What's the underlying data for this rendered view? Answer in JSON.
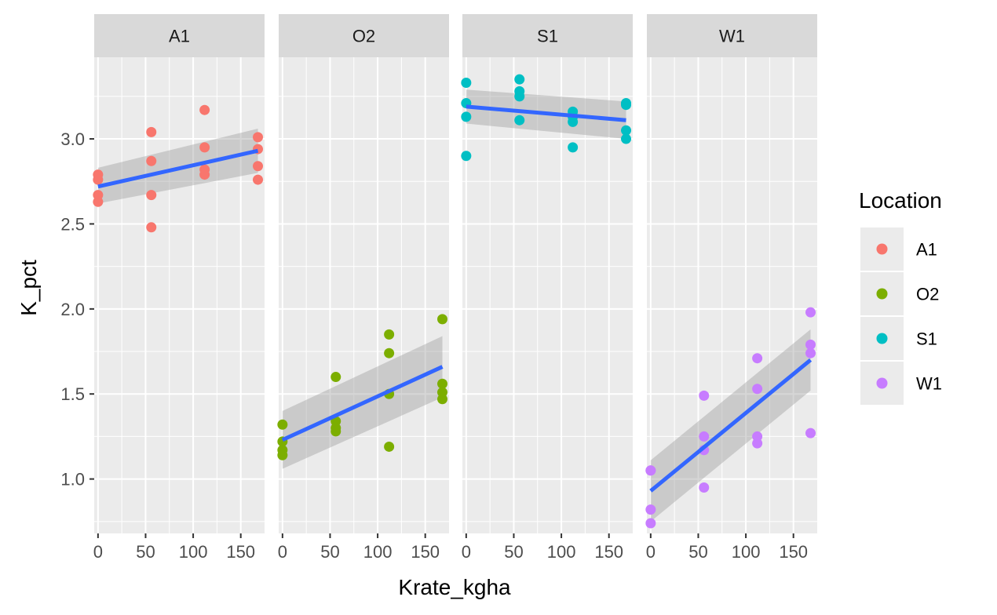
{
  "chart_data": {
    "type": "scatter",
    "facet_variable": "Location",
    "xlabel": "Krate_kgha",
    "ylabel": "K_pct",
    "xlim": [
      -4,
      175
    ],
    "ylim": [
      0.68,
      3.48
    ],
    "x_ticks": [
      0,
      50,
      100,
      150
    ],
    "x_tick_labels": [
      "0",
      "50",
      "100",
      "150"
    ],
    "y_ticks": [
      1.0,
      1.5,
      2.0,
      2.5,
      3.0
    ],
    "y_tick_labels": [
      "1.0",
      "1.5",
      "2.0",
      "2.5",
      "3.0"
    ],
    "grid": true,
    "smooth": "linear fit with grey confidence band",
    "legend": {
      "title": "Location",
      "placement": "right",
      "items": [
        {
          "label": "A1",
          "color": "#F8766D"
        },
        {
          "label": "O2",
          "color": "#7CAE00"
        },
        {
          "label": "S1",
          "color": "#00BFC4"
        },
        {
          "label": "W1",
          "color": "#C77CFF"
        }
      ]
    },
    "line_color": "#3366FF",
    "band_color": "#999999",
    "series": [
      {
        "name": "A1",
        "color": "#F8766D",
        "points": [
          {
            "x": 0,
            "y": 2.79
          },
          {
            "x": 0,
            "y": 2.76
          },
          {
            "x": 0,
            "y": 2.67
          },
          {
            "x": 0,
            "y": 2.63
          },
          {
            "x": 56,
            "y": 3.04
          },
          {
            "x": 56,
            "y": 2.87
          },
          {
            "x": 56,
            "y": 2.67
          },
          {
            "x": 56,
            "y": 2.48
          },
          {
            "x": 112,
            "y": 3.17
          },
          {
            "x": 112,
            "y": 2.95
          },
          {
            "x": 112,
            "y": 2.82
          },
          {
            "x": 112,
            "y": 2.79
          },
          {
            "x": 168,
            "y": 3.01
          },
          {
            "x": 168,
            "y": 2.94
          },
          {
            "x": 168,
            "y": 2.84
          },
          {
            "x": 168,
            "y": 2.76
          }
        ],
        "fit": {
          "x": [
            0,
            168
          ],
          "y": [
            2.72,
            2.93
          ],
          "lower": [
            2.62,
            2.8
          ],
          "upper": [
            2.83,
            3.06
          ]
        }
      },
      {
        "name": "O2",
        "color": "#7CAE00",
        "points": [
          {
            "x": 0,
            "y": 1.32
          },
          {
            "x": 0,
            "y": 1.22
          },
          {
            "x": 0,
            "y": 1.17
          },
          {
            "x": 0,
            "y": 1.14
          },
          {
            "x": 56,
            "y": 1.6
          },
          {
            "x": 56,
            "y": 1.34
          },
          {
            "x": 56,
            "y": 1.3
          },
          {
            "x": 56,
            "y": 1.28
          },
          {
            "x": 112,
            "y": 1.85
          },
          {
            "x": 112,
            "y": 1.74
          },
          {
            "x": 112,
            "y": 1.5
          },
          {
            "x": 112,
            "y": 1.19
          },
          {
            "x": 168,
            "y": 1.94
          },
          {
            "x": 168,
            "y": 1.56
          },
          {
            "x": 168,
            "y": 1.51
          },
          {
            "x": 168,
            "y": 1.47
          }
        ],
        "fit": {
          "x": [
            0,
            168
          ],
          "y": [
            1.23,
            1.66
          ],
          "lower": [
            1.06,
            1.48
          ],
          "upper": [
            1.4,
            1.84
          ]
        }
      },
      {
        "name": "S1",
        "color": "#00BFC4",
        "points": [
          {
            "x": 0,
            "y": 3.33
          },
          {
            "x": 0,
            "y": 3.21
          },
          {
            "x": 0,
            "y": 3.13
          },
          {
            "x": 0,
            "y": 2.9
          },
          {
            "x": 56,
            "y": 3.35
          },
          {
            "x": 56,
            "y": 3.28
          },
          {
            "x": 56,
            "y": 3.25
          },
          {
            "x": 56,
            "y": 3.11
          },
          {
            "x": 112,
            "y": 3.16
          },
          {
            "x": 112,
            "y": 3.13
          },
          {
            "x": 112,
            "y": 3.1
          },
          {
            "x": 112,
            "y": 2.95
          },
          {
            "x": 168,
            "y": 3.21
          },
          {
            "x": 168,
            "y": 3.2
          },
          {
            "x": 168,
            "y": 3.05
          },
          {
            "x": 168,
            "y": 3.0
          }
        ],
        "fit": {
          "x": [
            0,
            168
          ],
          "y": [
            3.19,
            3.11
          ],
          "lower": [
            3.09,
            3.0
          ],
          "upper": [
            3.29,
            3.22
          ]
        }
      },
      {
        "name": "W1",
        "color": "#C77CFF",
        "points": [
          {
            "x": 0,
            "y": 1.05
          },
          {
            "x": 0,
            "y": 1.05
          },
          {
            "x": 0,
            "y": 0.82
          },
          {
            "x": 0,
            "y": 0.74
          },
          {
            "x": 56,
            "y": 1.49
          },
          {
            "x": 56,
            "y": 1.25
          },
          {
            "x": 56,
            "y": 1.17
          },
          {
            "x": 56,
            "y": 0.95
          },
          {
            "x": 112,
            "y": 1.71
          },
          {
            "x": 112,
            "y": 1.53
          },
          {
            "x": 112,
            "y": 1.25
          },
          {
            "x": 112,
            "y": 1.21
          },
          {
            "x": 168,
            "y": 1.98
          },
          {
            "x": 168,
            "y": 1.79
          },
          {
            "x": 168,
            "y": 1.74
          },
          {
            "x": 168,
            "y": 1.27
          }
        ],
        "fit": {
          "x": [
            0,
            168
          ],
          "y": [
            0.93,
            1.7
          ],
          "lower": [
            0.75,
            1.52
          ],
          "upper": [
            1.11,
            1.88
          ]
        }
      }
    ]
  }
}
